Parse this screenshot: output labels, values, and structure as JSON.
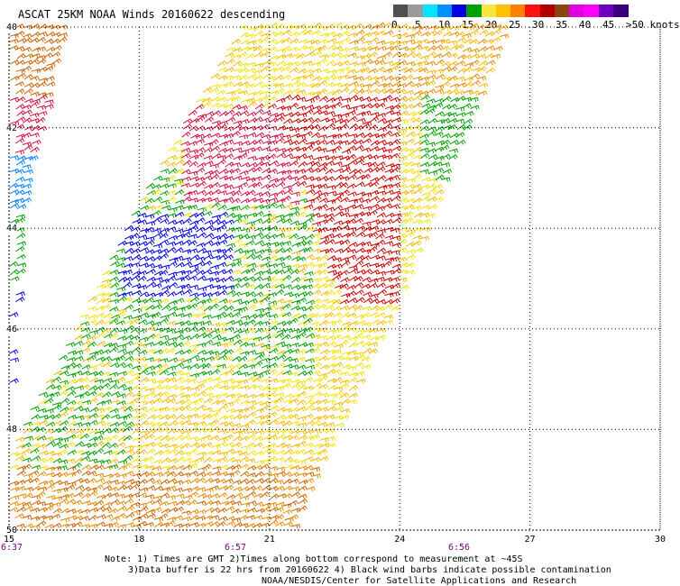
{
  "title": "ASCAT 25KM NOAA Winds 20160622 descending",
  "legend": {
    "colors": [
      "#505050",
      "#9a9a9a",
      "#00e5ff",
      "#0090ff",
      "#0000e0",
      "#00a000",
      "#f5e642",
      "#ffc000",
      "#ff8000",
      "#ff1010",
      "#b00000",
      "#8b4513",
      "#e000e0",
      "#ff00ff",
      "#7000c0",
      "#3a0080"
    ],
    "labels": [
      "0",
      "5",
      "10",
      "15",
      "20",
      "25",
      "30",
      "35",
      "40",
      "45",
      ">50 knots"
    ]
  },
  "lat_labels": [
    "40",
    "42",
    "44",
    "46",
    "48",
    "50"
  ],
  "lon_labels": [
    "15",
    "18",
    "21",
    "24",
    "27",
    "30"
  ],
  "time_labels": [
    "6:37",
    "6:57",
    "6:56"
  ],
  "notes": [
    "Note: 1) Times are GMT 2)Times along bottom correspond to measurement at ~45S",
    "3)Data buffer is 22 hrs from 20160622 4) Black wind barbs indicate possible contamination",
    "NOAA/NESDIS/Center for Satellite Applications and Research"
  ],
  "map_extent": {
    "lon_min": 15,
    "lon_max": 30,
    "lat_min": 40,
    "lat_max": 50,
    "hemisphere": "S"
  },
  "gridlines": "dotted"
}
